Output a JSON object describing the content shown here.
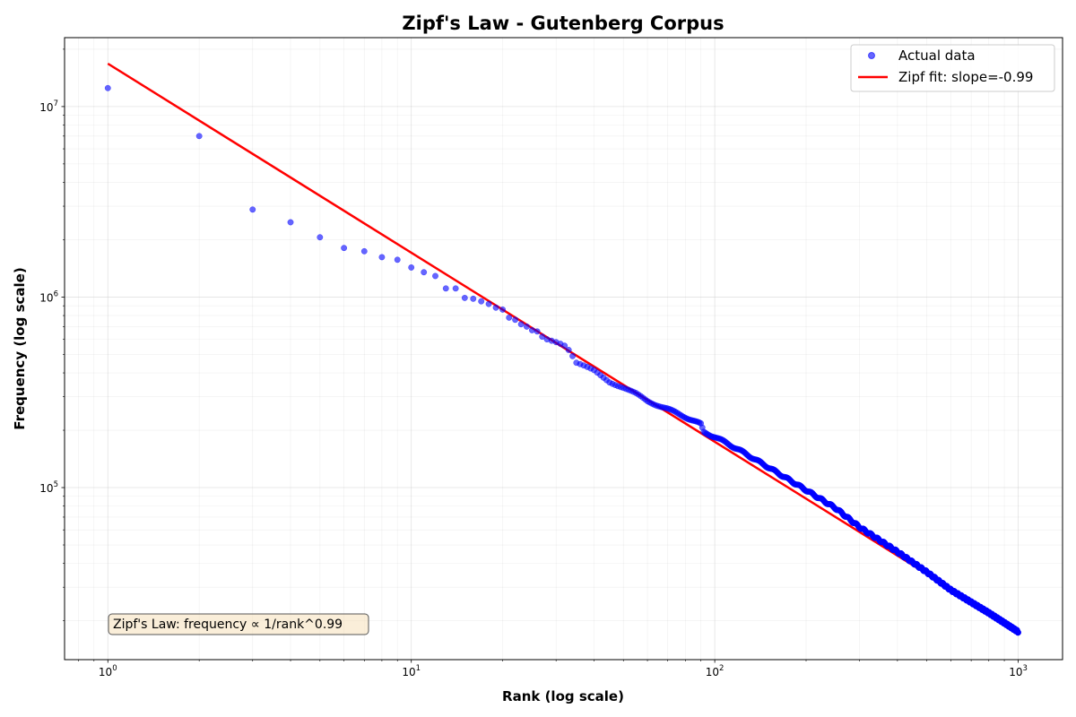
{
  "chart_data": {
    "type": "scatter",
    "title": "Zipf's Law - Gutenberg Corpus",
    "xlabel": "Rank (log scale)",
    "ylabel": "Frequency (log scale)",
    "xscale": "log",
    "yscale": "log",
    "xlim": [
      0.72,
      1400
    ],
    "ylim": [
      12500,
      23000000
    ],
    "x_ticks": [
      {
        "base": "10",
        "exp": "0",
        "value": 1
      },
      {
        "base": "10",
        "exp": "1",
        "value": 10
      },
      {
        "base": "10",
        "exp": "2",
        "value": 100
      },
      {
        "base": "10",
        "exp": "3",
        "value": 1000
      }
    ],
    "y_ticks": [
      {
        "base": "10",
        "exp": "5",
        "value": 100000
      },
      {
        "base": "10",
        "exp": "6",
        "value": 1000000
      },
      {
        "base": "10",
        "exp": "7",
        "value": 10000000
      }
    ],
    "grid": true,
    "legend_position": "top-right",
    "series": [
      {
        "name": "Actual data",
        "kind": "scatter",
        "color": "#0000ff",
        "ranks": {
          "start": 1,
          "end": 1000
        },
        "head_points": [
          [
            1,
            12500000
          ],
          [
            2,
            7000000
          ],
          [
            3,
            2880000
          ],
          [
            4,
            2470000
          ],
          [
            5,
            2060000
          ],
          [
            6,
            1810000
          ],
          [
            7,
            1740000
          ],
          [
            8,
            1620000
          ],
          [
            9,
            1570000
          ],
          [
            10,
            1430000
          ],
          [
            11,
            1350000
          ],
          [
            12,
            1290000
          ],
          [
            13,
            1110000
          ],
          [
            14,
            1110000
          ],
          [
            15,
            990000
          ],
          [
            16,
            980000
          ],
          [
            17,
            950000
          ],
          [
            18,
            920000
          ],
          [
            19,
            880000
          ],
          [
            20,
            860000
          ],
          [
            21,
            780000
          ],
          [
            22,
            760000
          ],
          [
            23,
            720000
          ],
          [
            24,
            700000
          ],
          [
            25,
            670000
          ],
          [
            26,
            660000
          ],
          [
            27,
            620000
          ],
          [
            28,
            600000
          ],
          [
            29,
            590000
          ],
          [
            30,
            580000
          ]
        ],
        "tail_anchors": [
          [
            30,
            580000
          ],
          [
            31,
            575000
          ],
          [
            32,
            560000
          ],
          [
            33,
            530000
          ],
          [
            34,
            490000
          ],
          [
            35,
            450000
          ],
          [
            40,
            410000
          ],
          [
            45,
            360000
          ],
          [
            50,
            335000
          ],
          [
            55,
            310000
          ],
          [
            60,
            285000
          ],
          [
            70,
            258000
          ],
          [
            80,
            235000
          ],
          [
            90,
            215000
          ],
          [
            92,
            195000
          ],
          [
            100,
            185000
          ],
          [
            120,
            158000
          ],
          [
            150,
            128000
          ],
          [
            200,
            97000
          ],
          [
            250,
            78000
          ],
          [
            300,
            62000
          ],
          [
            400,
            46000
          ],
          [
            500,
            36000
          ],
          [
            600,
            29000
          ],
          [
            700,
            25000
          ],
          [
            800,
            22000
          ],
          [
            900,
            19500
          ],
          [
            1000,
            17500
          ]
        ]
      },
      {
        "name": "Zipf fit: slope=-0.99",
        "kind": "line",
        "color": "#ff0000",
        "points": [
          [
            1,
            16800000
          ],
          [
            1000,
            17700
          ]
        ]
      }
    ],
    "annotation": "Zipf's Law: frequency ∝ 1/rank^0.99"
  }
}
